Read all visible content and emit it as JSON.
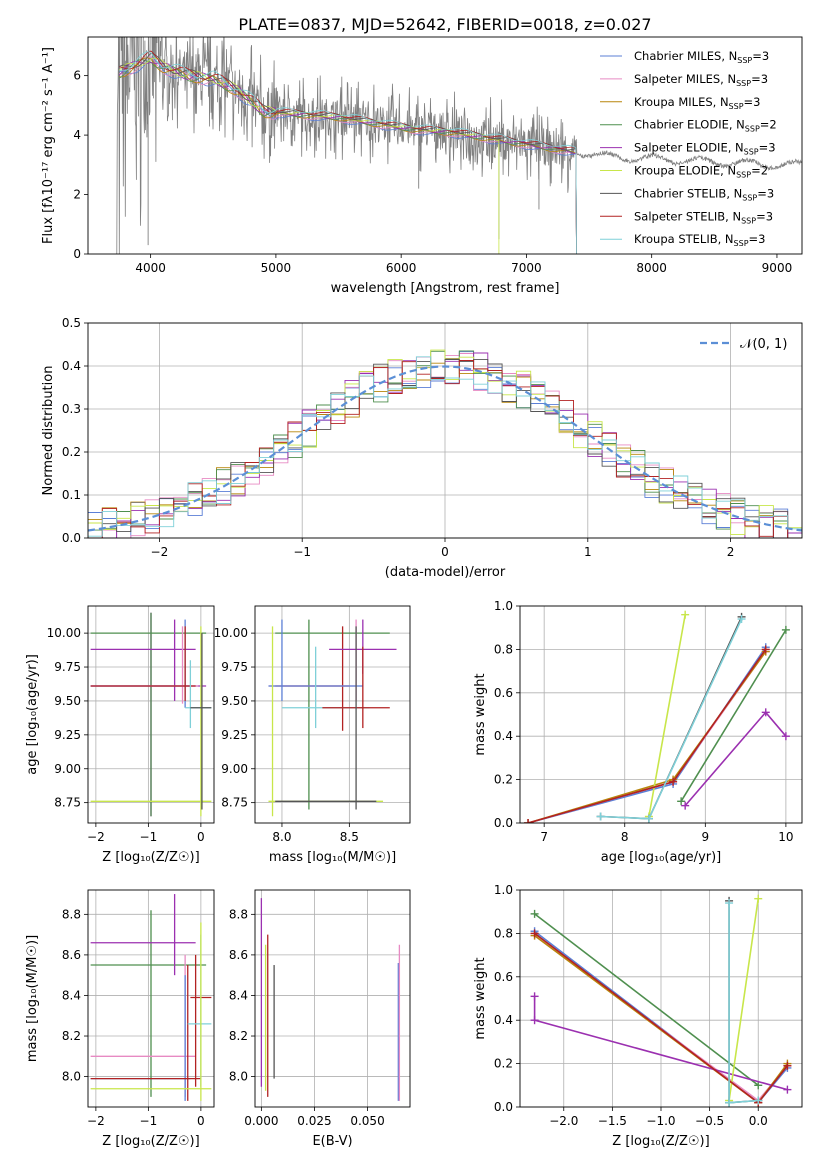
{
  "title": "PLATE=0837, MJD=52642, FIBERID=0018, z=0.027",
  "series_legend": [
    {
      "name": "Chabrier MILES, N",
      "sub": "SSP",
      "suffix": "=3",
      "color": "#5b7fd6"
    },
    {
      "name": "Salpeter MILES, N",
      "sub": "SSP",
      "suffix": "=3",
      "color": "#e78ac3"
    },
    {
      "name": "Kroupa MILES, N",
      "sub": "SSP",
      "suffix": "=3",
      "color": "#b8860b"
    },
    {
      "name": "Chabrier ELODIE, N",
      "sub": "SSP",
      "suffix": "=2",
      "color": "#4f8f4f"
    },
    {
      "name": "Salpeter ELODIE, N",
      "sub": "SSP",
      "suffix": "=3",
      "color": "#9b30b0"
    },
    {
      "name": "Kroupa ELODIE, N",
      "sub": "SSP",
      "suffix": "=2",
      "color": "#c8e64a"
    },
    {
      "name": "Chabrier STELIB, N",
      "sub": "SSP",
      "suffix": "=3",
      "color": "#555555"
    },
    {
      "name": "Salpeter STELIB, N",
      "sub": "SSP",
      "suffix": "=3",
      "color": "#b22222"
    },
    {
      "name": "Kroupa STELIB, N",
      "sub": "SSP",
      "suffix": "=3",
      "color": "#7fd0d8"
    }
  ],
  "chart_data": [
    {
      "id": "spectrum",
      "type": "line",
      "xlabel": "wavelength [Angstrom, rest frame]",
      "ylabel": "Flux [fλ10⁻¹⁷ erg cm⁻² s⁻¹ A⁻¹]",
      "xlim": [
        3500,
        9200
      ],
      "ylim": [
        0,
        7.3
      ],
      "xticks": [
        4000,
        5000,
        6000,
        7000,
        8000,
        9000
      ],
      "yticks": [
        0,
        2,
        4,
        6
      ],
      "data_color": "#808080",
      "continuum_x": [
        3750,
        3900,
        4000,
        4100,
        4300,
        4500,
        4700,
        4900,
        5200,
        5500,
        5800,
        6100,
        6400,
        6700,
        7000,
        7300,
        7600,
        8000,
        8500,
        9000
      ],
      "continuum_y": [
        6.1,
        6.4,
        6.6,
        6.3,
        6.0,
        5.9,
        5.5,
        4.8,
        4.7,
        4.6,
        4.4,
        4.2,
        4.1,
        3.9,
        3.7,
        3.5,
        3.3,
        3.2,
        3.1,
        3.0
      ]
    },
    {
      "id": "residuals",
      "type": "histogram",
      "xlabel": "(data-model)/error",
      "ylabel": "Normed distribution",
      "xlim": [
        -2.5,
        2.5
      ],
      "ylim": [
        0,
        0.5
      ],
      "xticks": [
        -2,
        -1,
        0,
        1,
        2
      ],
      "yticks": [
        0.0,
        0.1,
        0.2,
        0.3,
        0.4,
        0.5
      ],
      "grid": true,
      "legend": "top-right",
      "reference_label": "𝒩(0, 1)",
      "reference_color": "#5b8fd6",
      "bin_width": 0.1
    },
    {
      "id": "age-vs-Z",
      "type": "scatter",
      "xlabel": "Z [log₁₀(Z/Z☉)]",
      "ylabel": "age  [log₁₀(age/yr)]",
      "xlim": [
        -2.15,
        0.25
      ],
      "ylim": [
        8.6,
        10.2
      ],
      "xticks": [
        -2,
        -1,
        0
      ],
      "yticks": [
        8.75,
        9.0,
        9.25,
        9.5,
        9.75,
        10.0
      ],
      "grid": true
    },
    {
      "id": "age-vs-mass",
      "type": "scatter",
      "xlabel": "mass [log₁₀(M/M☉)]",
      "ylabel": "",
      "xlim": [
        7.8,
        8.95
      ],
      "ylim": [
        8.6,
        10.2
      ],
      "xticks": [
        8.0,
        8.5
      ],
      "yticks": [
        8.75,
        9.0,
        9.25,
        9.5,
        9.75,
        10.0
      ],
      "grid": true
    },
    {
      "id": "weight-vs-age",
      "type": "line",
      "xlabel": "age  [log₁₀(age/yr)]",
      "ylabel": "mass weight",
      "xlim": [
        6.7,
        10.2
      ],
      "ylim": [
        0,
        1.0
      ],
      "xticks": [
        7,
        8,
        9,
        10
      ],
      "yticks": [
        0.0,
        0.2,
        0.4,
        0.6,
        0.8,
        1.0
      ],
      "grid": true,
      "series": [
        {
          "name": "Chabrier MILES",
          "x": [
            6.8,
            8.6,
            9.75
          ],
          "y": [
            0.0,
            0.18,
            0.81
          ]
        },
        {
          "name": "Salpeter MILES",
          "x": [
            6.8,
            8.6,
            9.75
          ],
          "y": [
            0.0,
            0.19,
            0.79
          ]
        },
        {
          "name": "Kroupa MILES",
          "x": [
            6.8,
            8.6,
            9.75
          ],
          "y": [
            0.0,
            0.2,
            0.79
          ]
        },
        {
          "name": "Chabrier ELODIE",
          "x": [
            8.7,
            10.0
          ],
          "y": [
            0.1,
            0.89
          ]
        },
        {
          "name": "Salpeter ELODIE",
          "x": [
            8.75,
            9.75,
            10.0
          ],
          "y": [
            0.08,
            0.51,
            0.4
          ]
        },
        {
          "name": "Kroupa ELODIE",
          "x": [
            8.3,
            8.75
          ],
          "y": [
            0.03,
            0.96
          ]
        },
        {
          "name": "Chabrier STELIB",
          "x": [
            7.7,
            8.3,
            9.45
          ],
          "y": [
            0.03,
            0.02,
            0.95
          ]
        },
        {
          "name": "Salpeter STELIB",
          "x": [
            6.8,
            8.6,
            9.75
          ],
          "y": [
            0.0,
            0.19,
            0.8
          ]
        },
        {
          "name": "Kroupa STELIB",
          "x": [
            7.7,
            8.3,
            9.45
          ],
          "y": [
            0.03,
            0.02,
            0.94
          ]
        }
      ]
    },
    {
      "id": "mass-vs-Z",
      "type": "scatter",
      "xlabel": "Z [log₁₀(Z/Z☉)]",
      "ylabel": "mass [log₁₀(M/M☉)]",
      "xlim": [
        -2.15,
        0.25
      ],
      "ylim": [
        7.85,
        8.92
      ],
      "xticks": [
        -2,
        -1,
        0
      ],
      "yticks": [
        8.0,
        8.2,
        8.4,
        8.6,
        8.8
      ],
      "grid": true
    },
    {
      "id": "mass-vs-EBV",
      "type": "scatter",
      "xlabel": "E(B-V)",
      "ylabel": "",
      "xlim": [
        -0.003,
        0.07
      ],
      "ylim": [
        7.85,
        8.92
      ],
      "xticks": [
        0.0,
        0.025,
        0.05
      ],
      "xticklabels": [
        "0.000",
        "0.025",
        "0.050"
      ],
      "yticks": [
        8.0,
        8.2,
        8.4,
        8.6,
        8.8
      ],
      "grid": true
    },
    {
      "id": "weight-vs-Z",
      "type": "line",
      "xlabel": "Z [log₁₀(Z/Z☉)]",
      "ylabel": "mass weight",
      "xlim": [
        -2.45,
        0.45
      ],
      "ylim": [
        0,
        1.0
      ],
      "xticks": [
        -2.0,
        -1.5,
        -1.0,
        -0.5,
        0.0
      ],
      "yticks": [
        0.0,
        0.2,
        0.4,
        0.6,
        0.8,
        1.0
      ],
      "grid": true,
      "series": [
        {
          "name": "Chabrier MILES",
          "x": [
            -2.3,
            0.0,
            0.3
          ],
          "y": [
            0.81,
            0.02,
            0.18
          ]
        },
        {
          "name": "Salpeter MILES",
          "x": [
            -2.3,
            0.0,
            0.3
          ],
          "y": [
            0.79,
            0.03,
            0.19
          ]
        },
        {
          "name": "Kroupa MILES",
          "x": [
            -2.3,
            0.0,
            0.3
          ],
          "y": [
            0.79,
            0.02,
            0.2
          ]
        },
        {
          "name": "Chabrier ELODIE",
          "x": [
            -2.3,
            0.0
          ],
          "y": [
            0.89,
            0.1
          ]
        },
        {
          "name": "Salpeter ELODIE",
          "x": [
            -2.3,
            -2.3,
            0.3
          ],
          "y": [
            0.51,
            0.4,
            0.08
          ]
        },
        {
          "name": "Kroupa ELODIE",
          "x": [
            -0.3,
            0.0
          ],
          "y": [
            0.03,
            0.96
          ]
        },
        {
          "name": "Chabrier STELIB",
          "x": [
            -0.3,
            -0.3,
            0.0
          ],
          "y": [
            0.95,
            0.02,
            0.03
          ]
        },
        {
          "name": "Salpeter STELIB",
          "x": [
            -2.3,
            0.0,
            0.3
          ],
          "y": [
            0.8,
            0.02,
            0.19
          ]
        },
        {
          "name": "Kroupa STELIB",
          "x": [
            -0.3,
            -0.3,
            0.0
          ],
          "y": [
            0.94,
            0.02,
            0.03
          ]
        }
      ]
    }
  ]
}
